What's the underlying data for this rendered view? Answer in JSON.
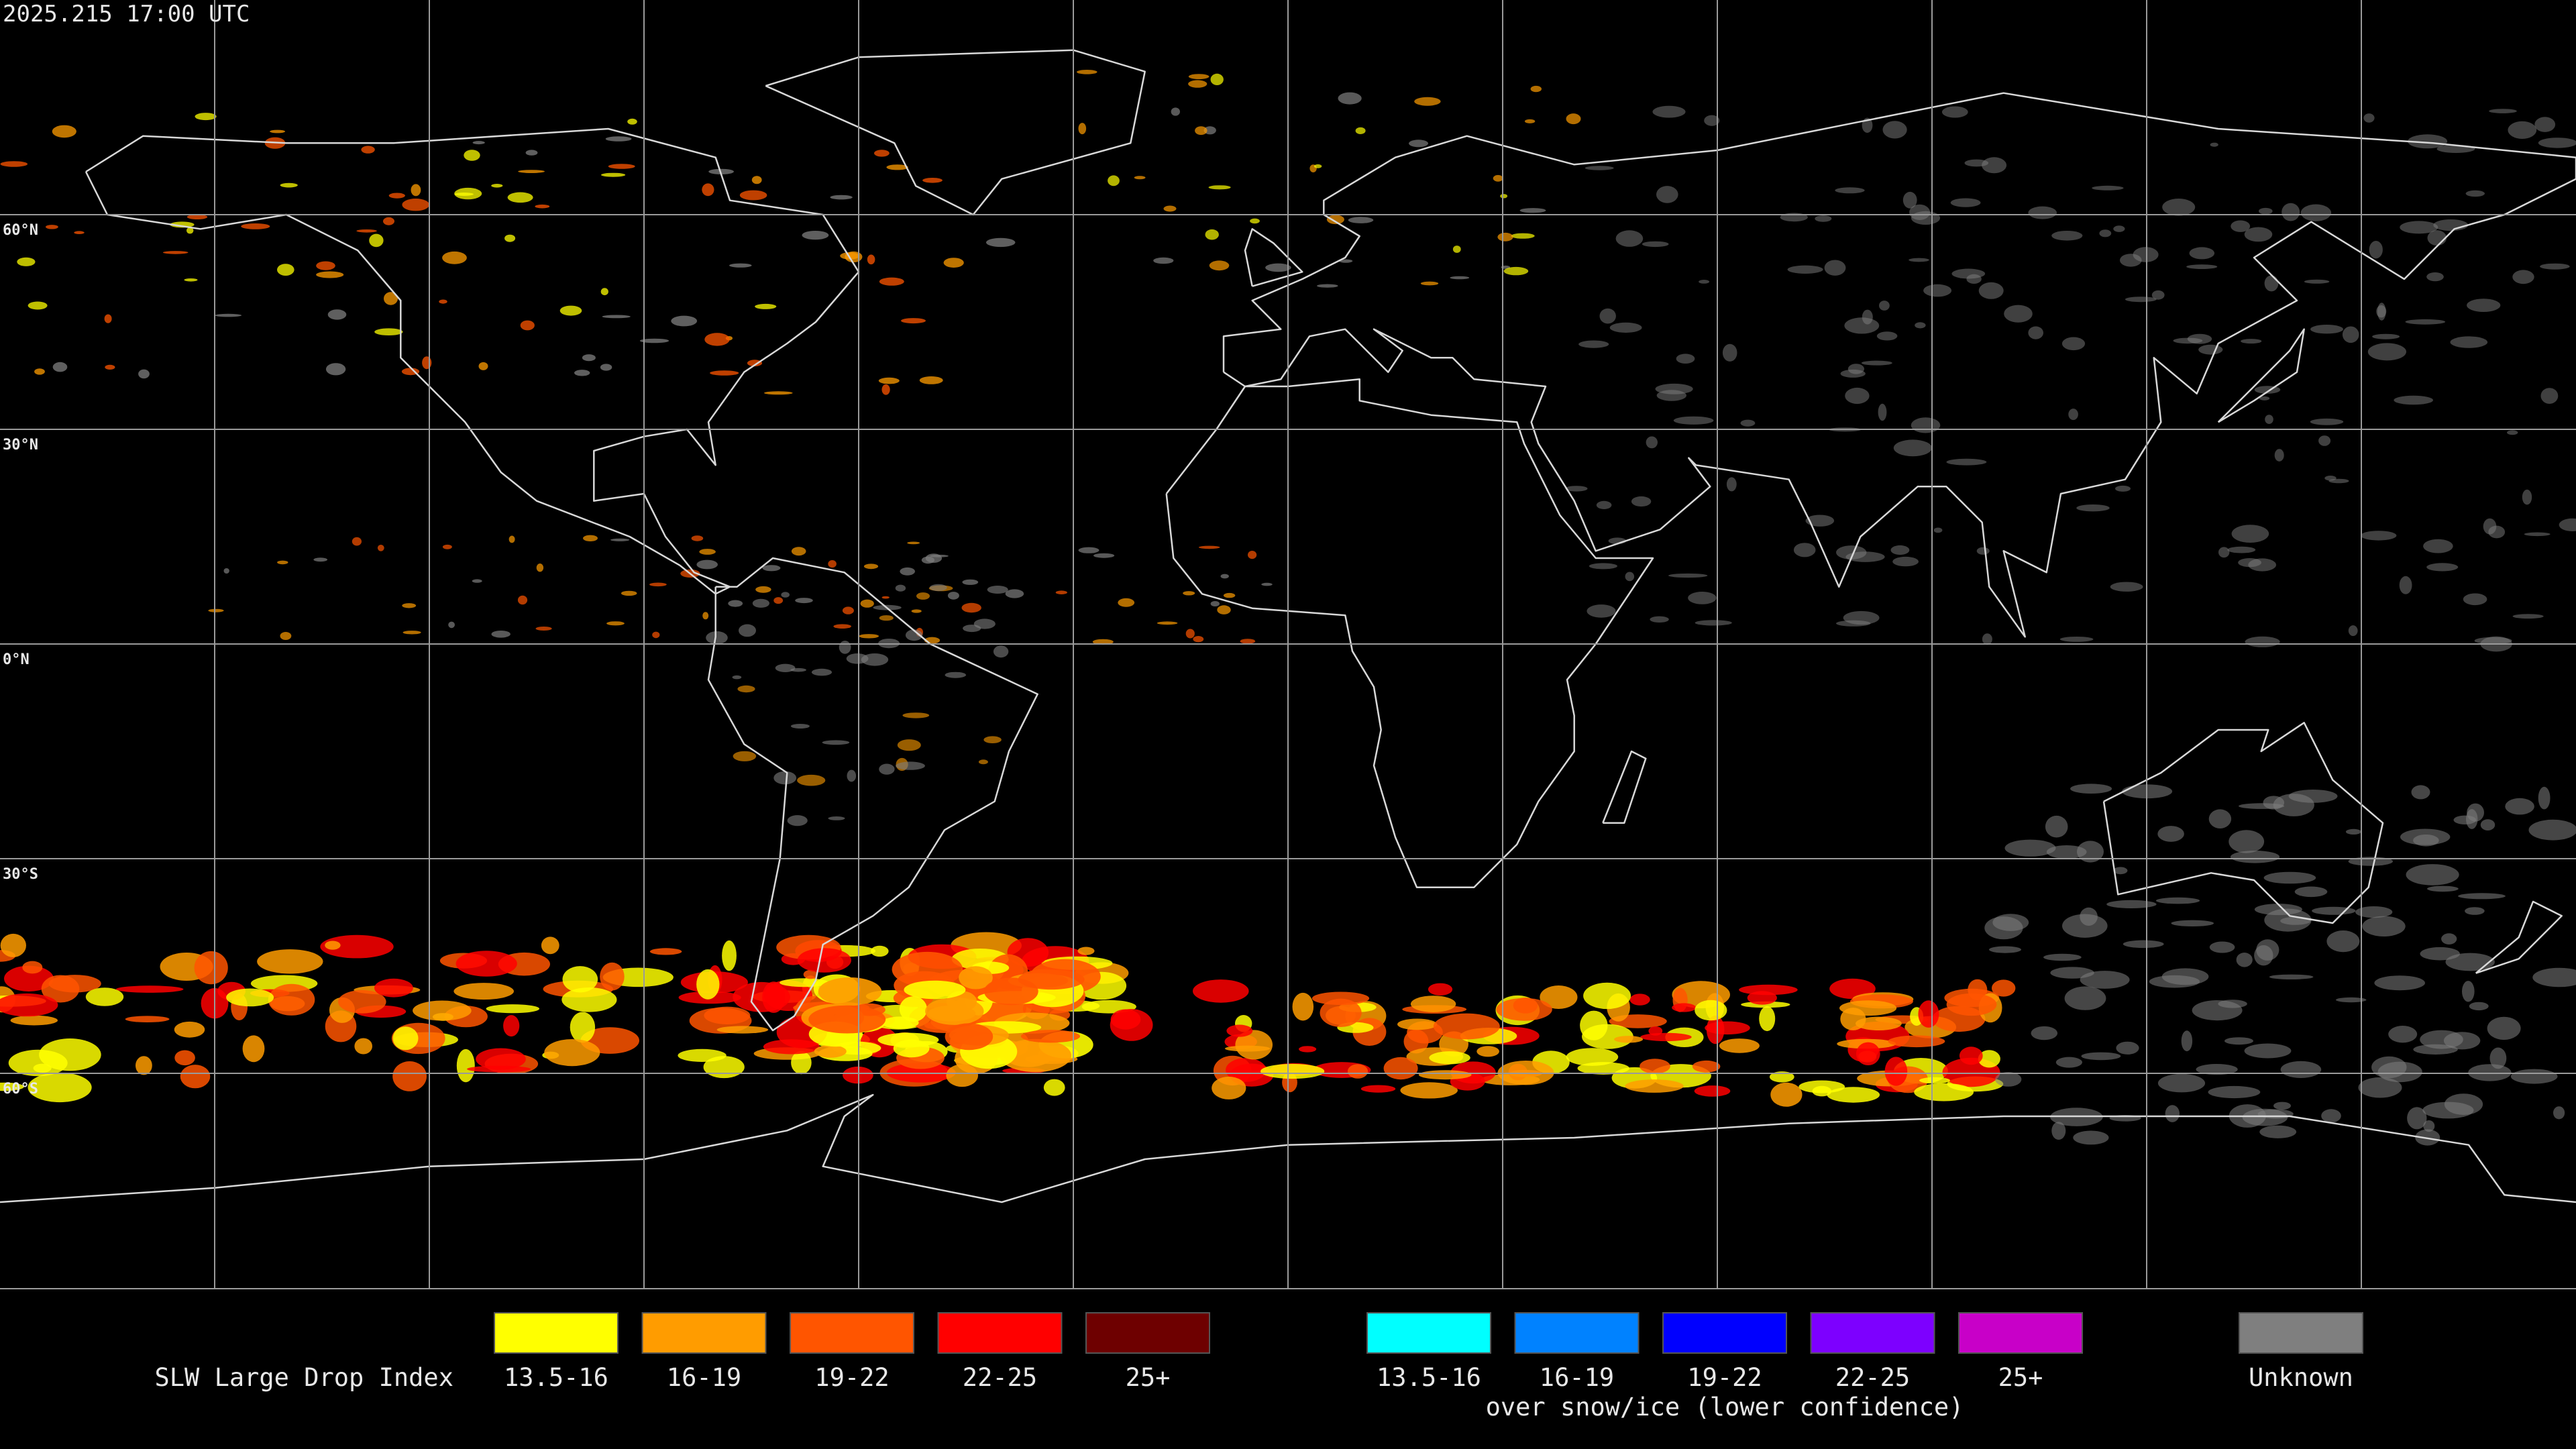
{
  "header": {
    "timestamp": "2025.215 17:00 UTC"
  },
  "map": {
    "latitude_labels": [
      "60°N",
      "30°N",
      "0°N",
      "30°S",
      "60°S"
    ]
  },
  "legend": {
    "title": "SLW Large Drop Index",
    "groups": [
      {
        "items": [
          {
            "label": "13.5-16",
            "color": "#ffff00"
          },
          {
            "label": "16-19",
            "color": "#ff9c00"
          },
          {
            "label": "19-22",
            "color": "#ff5500"
          },
          {
            "label": "22-25",
            "color": "#ff0000"
          },
          {
            "label": "25+",
            "color": "#6e0000"
          }
        ]
      },
      {
        "items": [
          {
            "label": "13.5-16",
            "color": "#00ffff"
          },
          {
            "label": "16-19",
            "color": "#0082ff"
          },
          {
            "label": "19-22",
            "color": "#0000ff"
          },
          {
            "label": "22-25",
            "color": "#7d00ff"
          },
          {
            "label": "25+",
            "color": "#c800c8"
          }
        ],
        "note": "over snow/ice (lower confidence)"
      },
      {
        "items": [
          {
            "label": "Unknown",
            "color": "#7f7f7f"
          }
        ]
      }
    ]
  }
}
